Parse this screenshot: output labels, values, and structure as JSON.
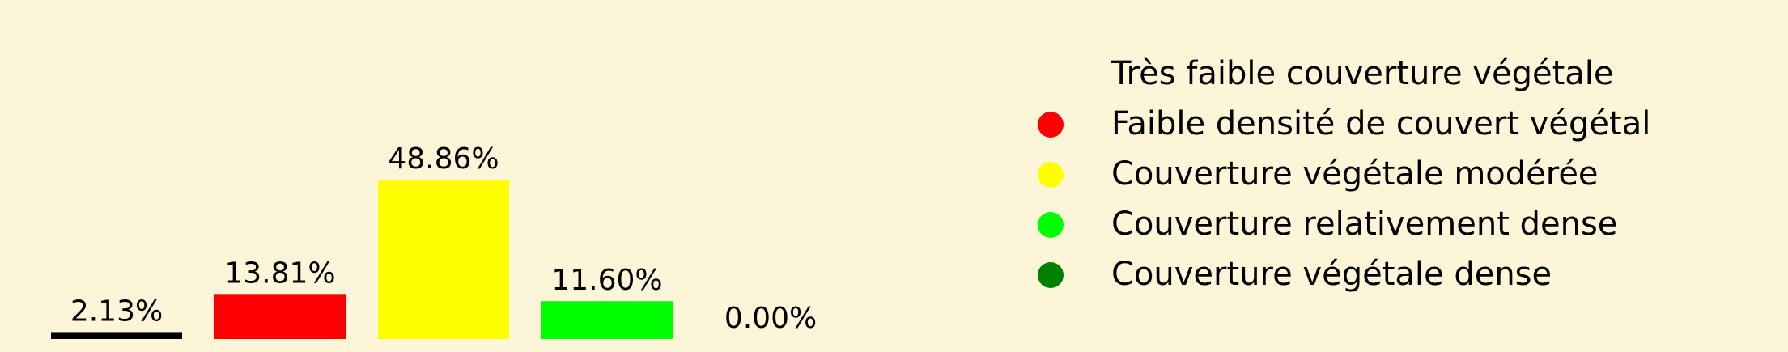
{
  "chart_data": {
    "type": "bar",
    "categories": [
      "Très faible couverture végétale",
      "Faible densité de couvert végétal",
      "Couverture végétale modérée",
      "Couverture relativement dense",
      "Couverture végétale dense"
    ],
    "values": [
      2.13,
      13.81,
      48.86,
      11.6,
      0.0
    ],
    "value_labels": [
      "2.13%",
      "13.81%",
      "48.86%",
      "11.60%",
      "0.00%"
    ],
    "colors": [
      "#000000",
      "#ff0000",
      "#ffff00",
      "#00ff00",
      "#008000"
    ],
    "ylim": [
      0,
      55
    ],
    "legend": {
      "placement": "right",
      "entries": [
        {
          "label": "Très faible couverture végétale",
          "color": "#fdf5d8"
        },
        {
          "label": "Faible densité de couvert végétal",
          "color": "#ff0000"
        },
        {
          "label": "Couverture végétale modérée",
          "color": "#ffff00"
        },
        {
          "label": "Couverture relativement dense",
          "color": "#00ff00"
        },
        {
          "label": "Couverture végétale dense",
          "color": "#008000"
        }
      ]
    },
    "background": "#fdf5d8",
    "grid": false,
    "axes_visible": false
  }
}
